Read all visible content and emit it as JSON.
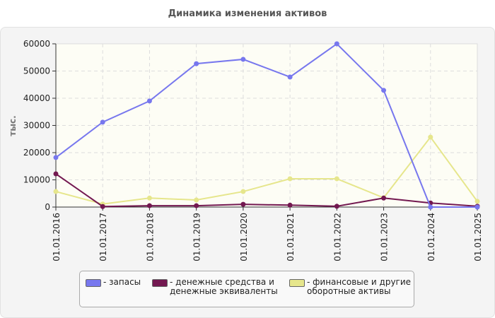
{
  "chart_data": {
    "type": "line",
    "title": "Динамика изменения активов",
    "ylabel": "тыс.",
    "xlabel": "",
    "ylim": [
      0,
      60000
    ],
    "yticks": [
      0,
      10000,
      20000,
      30000,
      40000,
      50000,
      60000
    ],
    "grid": true,
    "legend_placement": "bottom",
    "categories": [
      "01.01.2016",
      "01.01.2017",
      "01.01.2018",
      "01.01.2019",
      "01.01.2020",
      "01.01.2021",
      "01.01.2022",
      "01.01.2023",
      "01.01.2024",
      "01.01.2025"
    ],
    "series": [
      {
        "name": "- запасы",
        "color": "#7777ee",
        "values": [
          18200,
          31200,
          39000,
          52700,
          54300,
          47800,
          60000,
          42900,
          0,
          0
        ]
      },
      {
        "name": "- денежные средства и денежные эквиваленты",
        "color": "#731850",
        "values": [
          12200,
          200,
          500,
          500,
          1000,
          700,
          300,
          3300,
          1500,
          300
        ]
      },
      {
        "name": "- финансовые и другие оборотные активы",
        "color": "#e6e68c",
        "values": [
          5700,
          1100,
          3300,
          2600,
          5700,
          10400,
          10400,
          3400,
          25700,
          2100
        ]
      }
    ]
  },
  "legend": {
    "items": [
      {
        "line1": "- запасы",
        "line2": ""
      },
      {
        "line1": "- денежные средства и",
        "line2": "денежные эквиваленты"
      },
      {
        "line1": "- финансовые и другие",
        "line2": "оборотные активы"
      }
    ]
  }
}
